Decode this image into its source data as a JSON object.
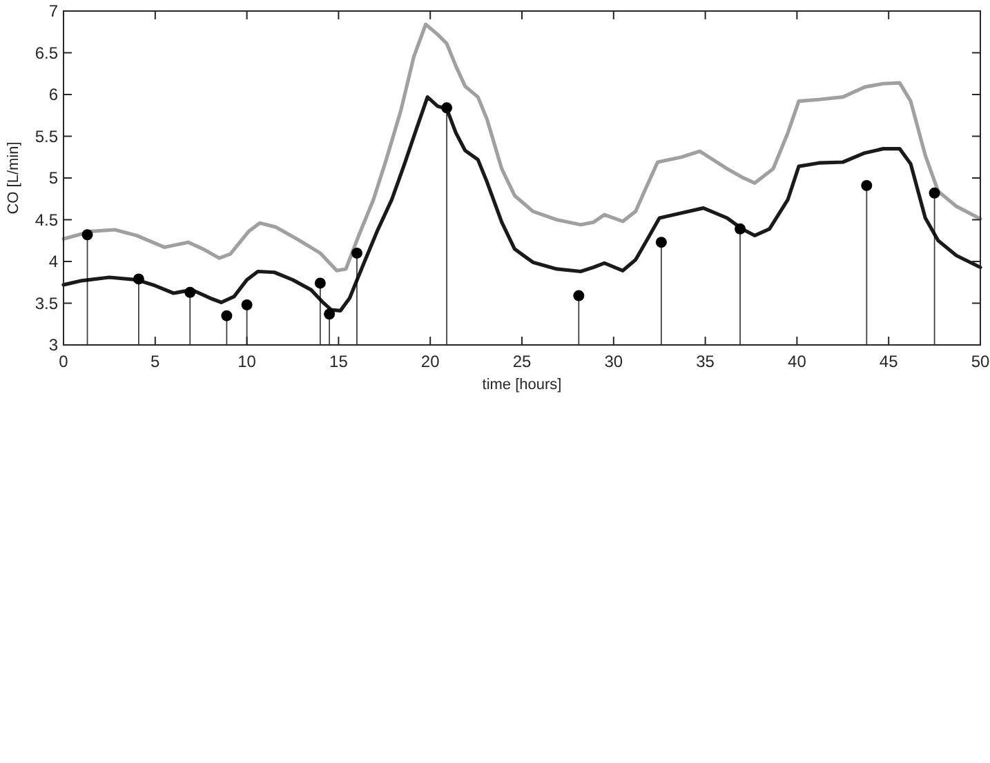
{
  "chart_data": {
    "type": "line",
    "xlabel": "time [hours]",
    "ylabel": "CO [L/min]",
    "xlim": [
      0,
      50
    ],
    "ylim": [
      3,
      7
    ],
    "xticks": [
      0,
      5,
      10,
      15,
      20,
      25,
      30,
      35,
      40,
      45,
      50
    ],
    "yticks": [
      3,
      3.5,
      4,
      4.5,
      5,
      5.5,
      6,
      6.5,
      7
    ],
    "series": [
      {
        "color": "#a0a0a0",
        "x": [
          0,
          1.5,
          2.8,
          4,
          5.5,
          6.8,
          7.6,
          8.5,
          9.1,
          10.1,
          10.7,
          11.6,
          12.8,
          14,
          14.9,
          15.4,
          16.1,
          16.9,
          17.6,
          18.4,
          19.1,
          19.75,
          20.4,
          20.9,
          21.4,
          21.9,
          22.6,
          23.1,
          23.9,
          24.6,
          25.6,
          26.9,
          28.2,
          28.9,
          29.5,
          30.5,
          31.2,
          31.6,
          32.4,
          33.7,
          34.7,
          36.2,
          37,
          37.7,
          38.7,
          39.5,
          40.1,
          41.2,
          42.5,
          43.7,
          44.7,
          45.6,
          46.2,
          47,
          47.7,
          48.7,
          50
        ],
        "values": [
          4.27,
          4.36,
          4.38,
          4.31,
          4.17,
          4.23,
          4.15,
          4.04,
          4.09,
          4.36,
          4.46,
          4.41,
          4.26,
          4.1,
          3.89,
          3.91,
          4.31,
          4.74,
          5.22,
          5.81,
          6.45,
          6.84,
          6.72,
          6.61,
          6.34,
          6.1,
          5.97,
          5.7,
          5.11,
          4.79,
          4.6,
          4.5,
          4.44,
          4.47,
          4.56,
          4.48,
          4.6,
          4.8,
          5.19,
          5.25,
          5.32,
          5.11,
          5.01,
          4.94,
          5.11,
          5.54,
          5.92,
          5.94,
          5.97,
          6.09,
          6.13,
          6.14,
          5.92,
          5.27,
          4.84,
          4.66,
          4.51
        ]
      },
      {
        "color": "#1a1a1a",
        "x": [
          0,
          1,
          2.5,
          4,
          5,
          6,
          7,
          8,
          8.6,
          9.3,
          10,
          10.6,
          11.5,
          12.5,
          13.5,
          14.1,
          14.6,
          15.1,
          15.6,
          16.4,
          17.1,
          17.9,
          18.6,
          19.25,
          19.85,
          20.4,
          20.9,
          21.4,
          21.9,
          22.6,
          23.1,
          23.9,
          24.6,
          25.6,
          26.9,
          28.2,
          28.9,
          29.5,
          30.5,
          31.2,
          31.8,
          32.5,
          33.7,
          34.9,
          36.2,
          37,
          37.7,
          38.5,
          39.5,
          40.1,
          41.2,
          42.5,
          43.7,
          44.7,
          45.6,
          46.2,
          47,
          47.7,
          48.7,
          50
        ],
        "values": [
          3.72,
          3.77,
          3.81,
          3.78,
          3.71,
          3.62,
          3.66,
          3.56,
          3.51,
          3.58,
          3.78,
          3.88,
          3.87,
          3.78,
          3.66,
          3.52,
          3.42,
          3.41,
          3.56,
          3.99,
          4.36,
          4.74,
          5.17,
          5.59,
          5.97,
          5.86,
          5.83,
          5.54,
          5.33,
          5.22,
          4.95,
          4.47,
          4.15,
          3.99,
          3.91,
          3.88,
          3.93,
          3.98,
          3.89,
          4.02,
          4.25,
          4.52,
          4.58,
          4.64,
          4.52,
          4.39,
          4.31,
          4.39,
          4.74,
          5.14,
          5.18,
          5.19,
          5.3,
          5.35,
          5.35,
          5.17,
          4.52,
          4.25,
          4.07,
          3.93
        ]
      },
      {
        "type": "lollipop",
        "marker": "circle",
        "color": "#000000",
        "x": [
          1.3,
          4.1,
          6.9,
          8.9,
          10,
          14,
          14.5,
          16,
          20.9,
          28.1,
          32.6,
          36.9,
          43.8,
          47.5
        ],
        "values": [
          4.32,
          3.79,
          3.63,
          3.35,
          3.48,
          3.74,
          3.37,
          4.1,
          5.84,
          3.59,
          4.23,
          4.39,
          4.91,
          4.82
        ]
      }
    ]
  }
}
